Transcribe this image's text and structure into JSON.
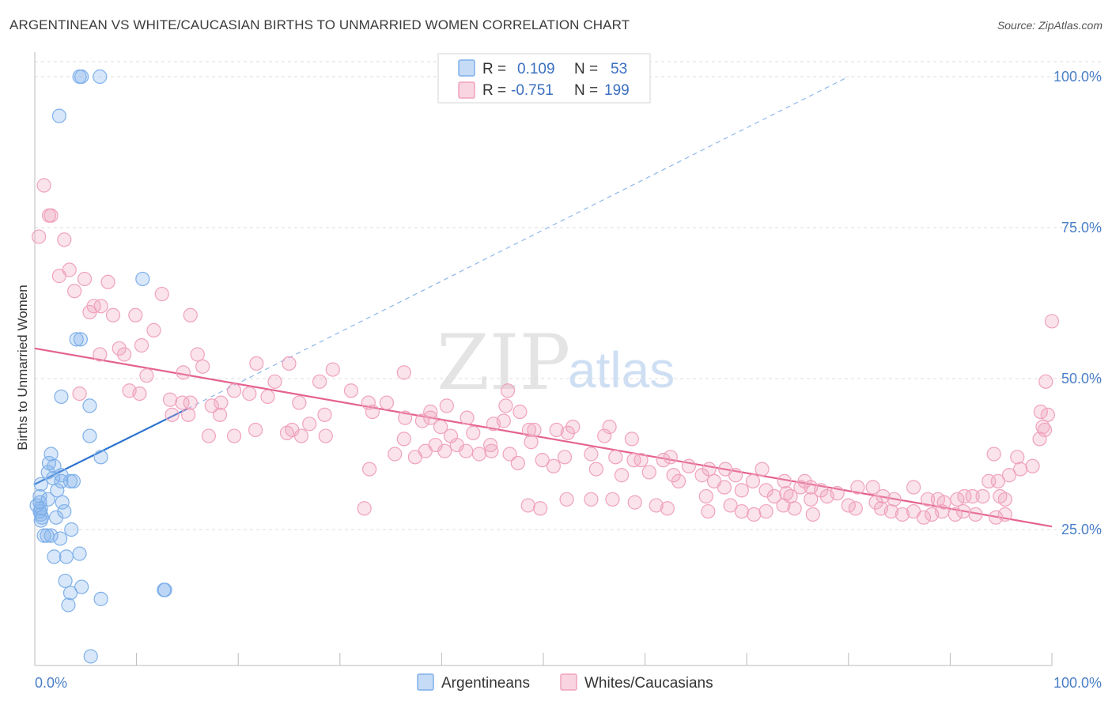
{
  "title": "ARGENTINEAN VS WHITE/CAUCASIAN BIRTHS TO UNMARRIED WOMEN CORRELATION CHART",
  "source": "Source: ZipAtlas.com",
  "watermark": {
    "zip": "ZIP",
    "atlas": "atlas"
  },
  "colors": {
    "blue": "#7fb0ea",
    "blue_fill": "rgba(127,176,234,0.30)",
    "blue_line": "#2b74d0",
    "pink": "#f0a2bd",
    "pink_fill": "rgba(240,162,189,0.30)",
    "pink_line": "#e4628f",
    "grid": "#dddddd",
    "tick_label": "#4a7fc8"
  },
  "legend": {
    "rows": [
      {
        "r_label": "R =",
        "r_value": "0.109",
        "n_label": "N =",
        "n_value": "53"
      },
      {
        "r_label": "R =",
        "r_value": "-0.751",
        "n_label": "N =",
        "n_value": "199"
      }
    ]
  },
  "chart_data": {
    "type": "scatter",
    "title": "ARGENTINEAN VS WHITE/CAUCASIAN BIRTHS TO UNMARRIED WOMEN CORRELATION CHART",
    "xlabel": "",
    "ylabel": "Births to Unmarried Women",
    "xlim": [
      0,
      100
    ],
    "ylim": [
      0,
      105
    ],
    "x_tick_labels": [
      "0.0%",
      "100.0%"
    ],
    "y_ticks": [
      25,
      50,
      75,
      100
    ],
    "y_tick_labels": [
      "25.0%",
      "50.0%",
      "75.0%",
      "100.0%"
    ],
    "grid": true,
    "legend_position": "top-center",
    "series": [
      {
        "name": "Argentineans",
        "r": 0.109,
        "n": 53,
        "trend": {
          "x": [
            0,
            15
          ],
          "y": [
            32.5,
            45.0
          ],
          "dashed_extension": {
            "x": [
              15,
              80
            ],
            "y": [
              45.0,
              100.0
            ]
          }
        },
        "points": [
          [
            4.4,
            100
          ],
          [
            4.6,
            100
          ],
          [
            6.4,
            100
          ],
          [
            2.4,
            93.5
          ],
          [
            10.6,
            66.5
          ],
          [
            4.1,
            56.5
          ],
          [
            4.5,
            56.5
          ],
          [
            2.6,
            47
          ],
          [
            5.4,
            45.5
          ],
          [
            5.4,
            40.5
          ],
          [
            6.5,
            37
          ],
          [
            1.6,
            37.5
          ],
          [
            1.4,
            36
          ],
          [
            1.9,
            35.5
          ],
          [
            1.3,
            34.5
          ],
          [
            2.6,
            34
          ],
          [
            1.8,
            33.5
          ],
          [
            2.6,
            33
          ],
          [
            3.5,
            33
          ],
          [
            3.8,
            33
          ],
          [
            0.6,
            32.5
          ],
          [
            2.2,
            31.5
          ],
          [
            0.5,
            30.5
          ],
          [
            1.3,
            30
          ],
          [
            0.5,
            29.5
          ],
          [
            2.7,
            29.5
          ],
          [
            0.2,
            29
          ],
          [
            0.6,
            28.5
          ],
          [
            0.5,
            28
          ],
          [
            2.9,
            28
          ],
          [
            0.6,
            27.5
          ],
          [
            0.7,
            27
          ],
          [
            2.1,
            27
          ],
          [
            0.6,
            26.5
          ],
          [
            3.6,
            25
          ],
          [
            0.9,
            24
          ],
          [
            1.6,
            24
          ],
          [
            1.2,
            24
          ],
          [
            2.5,
            23.5
          ],
          [
            1.9,
            20.5
          ],
          [
            3.1,
            20.5
          ],
          [
            4.4,
            21
          ],
          [
            3.0,
            16.5
          ],
          [
            4.6,
            15.5
          ],
          [
            3.5,
            14.5
          ],
          [
            12.7,
            15
          ],
          [
            12.8,
            15
          ],
          [
            6.5,
            13.5
          ],
          [
            3.3,
            12.5
          ],
          [
            5.5,
            4
          ]
        ]
      },
      {
        "name": "Whites/Caucasians",
        "r": -0.751,
        "n": 199,
        "trend": {
          "x": [
            0,
            100
          ],
          "y": [
            55.0,
            25.5
          ]
        },
        "points": [
          [
            0.9,
            82
          ],
          [
            0.4,
            73.5
          ],
          [
            1.6,
            77
          ],
          [
            1.4,
            77
          ],
          [
            2.9,
            73
          ],
          [
            3.4,
            68
          ],
          [
            2.4,
            67
          ],
          [
            4.9,
            66.5
          ],
          [
            7.2,
            66
          ],
          [
            3.9,
            64.5
          ],
          [
            12.5,
            64
          ],
          [
            5.8,
            62
          ],
          [
            6.5,
            62
          ],
          [
            5.4,
            61
          ],
          [
            7.7,
            60.5
          ],
          [
            9.9,
            60.5
          ],
          [
            15.3,
            60.5
          ],
          [
            11.7,
            58
          ],
          [
            8.3,
            55
          ],
          [
            10.5,
            55.5
          ],
          [
            6.4,
            54
          ],
          [
            8.8,
            54
          ],
          [
            16,
            54
          ],
          [
            21.8,
            52.5
          ],
          [
            25,
            52.5
          ],
          [
            16.5,
            52
          ],
          [
            29.3,
            51.5
          ],
          [
            14.6,
            51
          ],
          [
            36.3,
            51
          ],
          [
            11,
            50.5
          ],
          [
            23.6,
            49.5
          ],
          [
            9.3,
            48
          ],
          [
            4.4,
            47.5
          ],
          [
            10.3,
            47.5
          ],
          [
            19.6,
            48
          ],
          [
            21.1,
            47.5
          ],
          [
            28,
            49.5
          ],
          [
            31.1,
            48
          ],
          [
            13.3,
            46.5
          ],
          [
            14.5,
            46
          ],
          [
            15.3,
            46
          ],
          [
            26,
            46
          ],
          [
            32.8,
            46
          ],
          [
            34.6,
            46
          ],
          [
            17.4,
            45.5
          ],
          [
            18.3,
            46
          ],
          [
            22.9,
            47
          ],
          [
            46.5,
            48
          ],
          [
            38.9,
            44.5
          ],
          [
            33.2,
            44.5
          ],
          [
            40.5,
            45.5
          ],
          [
            38.1,
            43
          ],
          [
            42.5,
            43.5
          ],
          [
            46.3,
            45.5
          ],
          [
            47.7,
            44.5
          ],
          [
            46.1,
            43
          ],
          [
            45.1,
            42.5
          ],
          [
            49.1,
            41.5
          ],
          [
            51.3,
            41.5
          ],
          [
            52.9,
            42
          ],
          [
            15.1,
            44
          ],
          [
            13.5,
            44
          ],
          [
            18.2,
            44
          ],
          [
            38.9,
            43.5
          ],
          [
            36.4,
            43.5
          ],
          [
            27,
            42.5
          ],
          [
            28.5,
            44
          ],
          [
            21.7,
            41.5
          ],
          [
            25.3,
            41.5
          ],
          [
            26.2,
            40.5
          ],
          [
            24.8,
            41
          ],
          [
            28.6,
            40.5
          ],
          [
            17.1,
            40.5
          ],
          [
            19.6,
            40.5
          ],
          [
            39.9,
            42
          ],
          [
            40.9,
            40.5
          ],
          [
            43.1,
            41
          ],
          [
            48.6,
            41.5
          ],
          [
            52.4,
            41
          ],
          [
            56,
            40.5
          ],
          [
            56.5,
            42
          ],
          [
            58.7,
            40
          ],
          [
            36.3,
            40
          ],
          [
            41.5,
            39
          ],
          [
            44.8,
            39
          ],
          [
            48.8,
            39.5
          ],
          [
            43.7,
            37.5
          ],
          [
            44.9,
            38
          ],
          [
            46.7,
            37.5
          ],
          [
            35.4,
            37.5
          ],
          [
            38.4,
            38
          ],
          [
            39.4,
            39
          ],
          [
            40.3,
            38
          ],
          [
            42.4,
            38
          ],
          [
            47.5,
            36
          ],
          [
            49.9,
            36.5
          ],
          [
            52.1,
            37
          ],
          [
            54.7,
            37.5
          ],
          [
            57.1,
            37
          ],
          [
            58.9,
            36.5
          ],
          [
            59.6,
            36.5
          ],
          [
            61.8,
            36.5
          ],
          [
            62.5,
            37
          ],
          [
            64.3,
            35.5
          ],
          [
            66.3,
            35
          ],
          [
            67.9,
            35
          ],
          [
            71.5,
            35
          ],
          [
            60.4,
            34.5
          ],
          [
            62.8,
            34
          ],
          [
            65.6,
            34
          ],
          [
            68.9,
            34
          ],
          [
            70.6,
            33
          ],
          [
            73.7,
            33
          ],
          [
            75.7,
            33
          ],
          [
            32.9,
            35
          ],
          [
            37.4,
            37
          ],
          [
            51,
            35.5
          ],
          [
            55.2,
            35
          ],
          [
            57.7,
            34
          ],
          [
            63.3,
            33
          ],
          [
            66.8,
            33
          ],
          [
            75.3,
            32
          ],
          [
            76.3,
            32
          ],
          [
            77.3,
            31.5
          ],
          [
            67.8,
            32
          ],
          [
            69.5,
            31.5
          ],
          [
            71.9,
            31.5
          ],
          [
            66,
            30.5
          ],
          [
            72.7,
            30.5
          ],
          [
            73.9,
            31
          ],
          [
            74.3,
            30.5
          ],
          [
            76.3,
            30
          ],
          [
            77.9,
            30.5
          ],
          [
            78.9,
            31
          ],
          [
            80.9,
            32
          ],
          [
            82.4,
            32
          ],
          [
            83.4,
            30.5
          ],
          [
            84.5,
            30
          ],
          [
            86.4,
            32
          ],
          [
            87.8,
            30
          ],
          [
            88.8,
            30
          ],
          [
            89.4,
            29.5
          ],
          [
            90.7,
            30
          ],
          [
            91.4,
            30.5
          ],
          [
            92.2,
            30.5
          ],
          [
            93.2,
            30.5
          ],
          [
            94.9,
            30.5
          ],
          [
            95.4,
            30
          ],
          [
            80,
            29
          ],
          [
            80.7,
            28.5
          ],
          [
            82.7,
            29.5
          ],
          [
            83.2,
            28.5
          ],
          [
            84.2,
            28
          ],
          [
            85.3,
            27.5
          ],
          [
            86.4,
            28
          ],
          [
            87.4,
            27
          ],
          [
            88.2,
            27.5
          ],
          [
            89.2,
            28
          ],
          [
            90.5,
            27.5
          ],
          [
            91.3,
            28
          ],
          [
            92.5,
            27.5
          ],
          [
            94.5,
            27
          ],
          [
            95.4,
            27.5
          ],
          [
            76.5,
            27.5
          ],
          [
            73.6,
            29
          ],
          [
            74.7,
            28.5
          ],
          [
            71.9,
            28
          ],
          [
            70.7,
            27.5
          ],
          [
            69.5,
            28
          ],
          [
            68.4,
            29
          ],
          [
            66.2,
            28
          ],
          [
            62.2,
            28.5
          ],
          [
            61.1,
            29
          ],
          [
            59,
            29.5
          ],
          [
            56.8,
            30
          ],
          [
            54.7,
            30
          ],
          [
            52.3,
            30
          ],
          [
            49.7,
            28.5
          ],
          [
            48.5,
            29
          ],
          [
            32.4,
            28.5
          ],
          [
            93.8,
            33
          ],
          [
            94.7,
            33
          ],
          [
            95.8,
            34
          ],
          [
            96.9,
            35
          ],
          [
            98.1,
            35.5
          ],
          [
            96.6,
            37
          ],
          [
            94.3,
            37.5
          ],
          [
            98.8,
            40
          ],
          [
            99.3,
            41.5
          ],
          [
            99.1,
            42
          ],
          [
            99.6,
            44
          ],
          [
            98.9,
            44.5
          ],
          [
            99.4,
            49.5
          ],
          [
            100,
            59.5
          ]
        ]
      }
    ]
  },
  "y_axis_label": "Births to Unmarried Women",
  "x_ticks": {
    "left": "0.0%",
    "right": "100.0%"
  },
  "y_tick_labels": [
    "25.0%",
    "50.0%",
    "75.0%",
    "100.0%"
  ],
  "bottom_legend": [
    {
      "label": "Argentineans"
    },
    {
      "label": "Whites/Caucasians"
    }
  ]
}
